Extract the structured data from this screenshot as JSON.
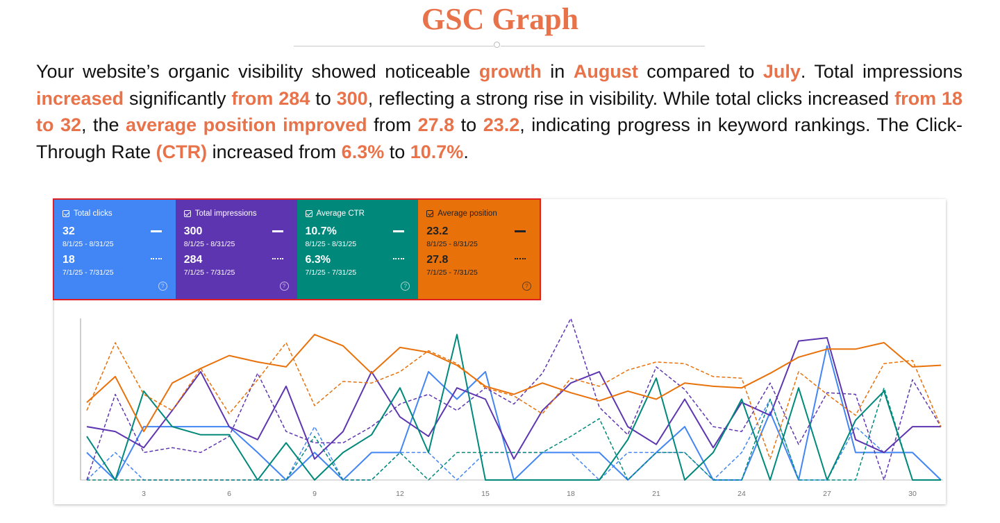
{
  "header": {
    "title": "GSC Graph"
  },
  "summary": {
    "segments": [
      {
        "text": "Your website’s organic visibility showed noticeable ",
        "hl": false
      },
      {
        "text": "growth",
        "hl": true
      },
      {
        "text": " in ",
        "hl": false
      },
      {
        "text": "August",
        "hl": true
      },
      {
        "text": " compared to ",
        "hl": false
      },
      {
        "text": "July",
        "hl": true
      },
      {
        "text": ". Total impressions ",
        "hl": false
      },
      {
        "text": "increased",
        "hl": true
      },
      {
        "text": " significantly ",
        "hl": false
      },
      {
        "text": "from 284",
        "hl": true
      },
      {
        "text": " to ",
        "hl": false
      },
      {
        "text": "300",
        "hl": true
      },
      {
        "text": ", reflecting a strong rise in visibility. While total clicks increased ",
        "hl": false
      },
      {
        "text": "from 18 to 32",
        "hl": true
      },
      {
        "text": ", the ",
        "hl": false
      },
      {
        "text": "average position improved",
        "hl": true
      },
      {
        "text": " from ",
        "hl": false
      },
      {
        "text": "27.8",
        "hl": true
      },
      {
        "text": " to ",
        "hl": false
      },
      {
        "text": "23.2",
        "hl": true
      },
      {
        "text": ", indicating progress in keyword rankings. The Click-Through Rate ",
        "hl": false
      },
      {
        "text": "(CTR)",
        "hl": true
      },
      {
        "text": " increased from ",
        "hl": false
      },
      {
        "text": "6.3%",
        "hl": true
      },
      {
        "text": " to ",
        "hl": false
      },
      {
        "text": "10.7%",
        "hl": true
      },
      {
        "text": ".",
        "hl": false
      }
    ]
  },
  "metrics": [
    {
      "key": "clicks",
      "label": "Total clicks",
      "current": "32",
      "current_range": "8/1/25 - 8/31/25",
      "previous": "18",
      "previous_range": "7/1/25 - 7/31/25",
      "bg": "#4285f4",
      "text_dark": false
    },
    {
      "key": "impressions",
      "label": "Total impressions",
      "current": "300",
      "current_range": "8/1/25 - 8/31/25",
      "previous": "284",
      "previous_range": "7/1/25 - 7/31/25",
      "bg": "#5e35b1",
      "text_dark": false
    },
    {
      "key": "ctr",
      "label": "Average CTR",
      "current": "10.7%",
      "current_range": "8/1/25 - 8/31/25",
      "previous": "6.3%",
      "previous_range": "7/1/25 - 7/31/25",
      "bg": "#00897b",
      "text_dark": false
    },
    {
      "key": "position",
      "label": "Average position",
      "current": "23.2",
      "current_range": "8/1/25 - 8/31/25",
      "previous": "27.8",
      "previous_range": "7/1/25 - 7/31/25",
      "bg": "#e8710a",
      "text_dark": true
    }
  ],
  "chart_data": {
    "type": "line",
    "title": "",
    "xlabel": "",
    "ylabel": "",
    "x": [
      1,
      2,
      3,
      4,
      5,
      6,
      7,
      8,
      9,
      10,
      11,
      12,
      13,
      14,
      15,
      16,
      17,
      18,
      19,
      20,
      21,
      22,
      23,
      24,
      25,
      26,
      27,
      28,
      29,
      30,
      31
    ],
    "x_tick_labels": [
      "3",
      "6",
      "9",
      "12",
      "15",
      "18",
      "21",
      "24",
      "27",
      "30"
    ],
    "x_tick_values": [
      3,
      6,
      9,
      12,
      15,
      18,
      21,
      24,
      27,
      30
    ],
    "ylim": [
      0,
      100
    ],
    "y_note": "normalized 0-100 (no y-axis labels shown)",
    "series": [
      {
        "name": "Total clicks (8/1/25 - 8/31/25)",
        "metric": "clicks",
        "period": "current",
        "dash": false,
        "color": "#4285f4",
        "values": [
          17,
          0,
          33,
          33,
          33,
          33,
          17,
          0,
          17,
          0,
          17,
          17,
          67,
          50,
          67,
          0,
          17,
          17,
          17,
          0,
          17,
          33,
          0,
          0,
          42,
          0,
          83,
          17,
          17,
          17,
          0
        ]
      },
      {
        "name": "Total clicks (7/1/25 - 7/31/25)",
        "metric": "clicks",
        "period": "previous",
        "dash": true,
        "color": "#4285f4",
        "values": [
          0,
          17,
          0,
          0,
          0,
          0,
          0,
          0,
          33,
          0,
          0,
          17,
          17,
          0,
          17,
          17,
          17,
          17,
          0,
          17,
          17,
          17,
          0,
          17,
          50,
          0,
          0,
          33,
          17,
          17,
          0
        ]
      },
      {
        "name": "Total impressions (8/1/25 - 8/31/25)",
        "metric": "impressions",
        "period": "current",
        "dash": false,
        "color": "#5e35b1",
        "values": [
          33,
          30,
          20,
          43,
          67,
          33,
          25,
          58,
          13,
          30,
          67,
          39,
          27,
          57,
          50,
          13,
          43,
          60,
          67,
          33,
          22,
          50,
          20,
          48,
          40,
          86,
          88,
          25,
          17,
          33,
          33
        ]
      },
      {
        "name": "Total impressions (7/1/25 - 7/31/25)",
        "metric": "impressions",
        "period": "previous",
        "dash": true,
        "color": "#5e35b1",
        "values": [
          0,
          53,
          17,
          20,
          17,
          27,
          66,
          30,
          23,
          23,
          33,
          47,
          53,
          43,
          57,
          47,
          66,
          100,
          45,
          28,
          70,
          56,
          33,
          30,
          60,
          22,
          54,
          53,
          0,
          62,
          33
        ]
      },
      {
        "name": "Average CTR (8/1/25 - 8/31/25)",
        "metric": "ctr",
        "period": "current",
        "dash": false,
        "color": "#00897b",
        "values": [
          27,
          0,
          55,
          33,
          28,
          28,
          0,
          23,
          0,
          17,
          28,
          57,
          17,
          90,
          0,
          0,
          0,
          0,
          0,
          25,
          63,
          0,
          17,
          50,
          0,
          57,
          0,
          37,
          55,
          0,
          0
        ]
      },
      {
        "name": "Average CTR (7/1/25 - 7/31/25)",
        "metric": "ctr",
        "period": "previous",
        "dash": true,
        "color": "#00897b",
        "values": [
          0,
          0,
          0,
          0,
          0,
          0,
          0,
          0,
          27,
          0,
          0,
          17,
          0,
          17,
          17,
          17,
          17,
          27,
          38,
          0,
          17,
          17,
          0,
          0,
          50,
          0,
          0,
          0,
          57,
          0,
          0
        ]
      },
      {
        "name": "Average position (8/1/25 - 8/31/25)",
        "metric": "position",
        "period": "current",
        "dash": false,
        "color": "#e8710a",
        "values": [
          48,
          64,
          30,
          60,
          69,
          77,
          73,
          70,
          90,
          83,
          66,
          82,
          79,
          71,
          58,
          53,
          60,
          54,
          49,
          55,
          50,
          60,
          58,
          57,
          66,
          76,
          81,
          81,
          85,
          70,
          71
        ]
      },
      {
        "name": "Average position (7/1/25 - 7/31/25)",
        "metric": "position",
        "period": "previous",
        "dash": true,
        "color": "#e8710a",
        "values": [
          43,
          85,
          53,
          43,
          69,
          41,
          62,
          85,
          46,
          61,
          60,
          67,
          80,
          72,
          57,
          52,
          41,
          63,
          58,
          68,
          73,
          72,
          64,
          63,
          13,
          67,
          53,
          40,
          72,
          74,
          33
        ]
      }
    ]
  }
}
